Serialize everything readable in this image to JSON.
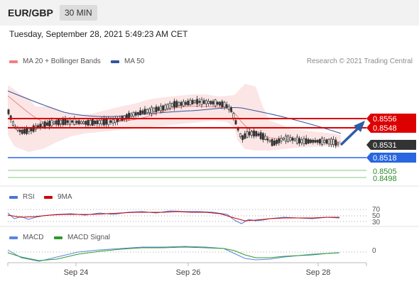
{
  "header": {
    "symbol": "EUR/GBP",
    "timeframe": "30 MIN",
    "datetime": "Tuesday, September 28, 2021 5:49:23 AM CET"
  },
  "legend": {
    "ma20": "MA 20 + Bollinger Bands",
    "ma50": "MA 50",
    "rsi": "RSI",
    "ma9": "9MA",
    "macd": "MACD",
    "macd_signal": "MACD Signal",
    "copyright": "Research © 2021 Trading Central"
  },
  "colors": {
    "ma20": "#f08080",
    "ma50": "#33559e",
    "resistance": "#dd0000",
    "support": "#2966e0",
    "target": "#2d8a2d",
    "current": "#333333",
    "rsi": "#4a76d6",
    "ma9": "#cc0000",
    "macd": "#5a86e0",
    "macd_signal": "#2d9a2d"
  },
  "price_levels": [
    {
      "label": "0.8556",
      "kind": "resistance"
    },
    {
      "label": "0.8548",
      "kind": "resistance"
    },
    {
      "label": "0.8531",
      "kind": "current"
    },
    {
      "label": "0.8518",
      "kind": "support"
    },
    {
      "label": "0.8505",
      "kind": "target"
    },
    {
      "label": "0.8498",
      "kind": "target"
    }
  ],
  "rsi_levels": [
    "70",
    "50",
    "30"
  ],
  "macd_level": "0",
  "x_axis": [
    "Sep 24",
    "Sep 26",
    "Sep 28"
  ]
}
